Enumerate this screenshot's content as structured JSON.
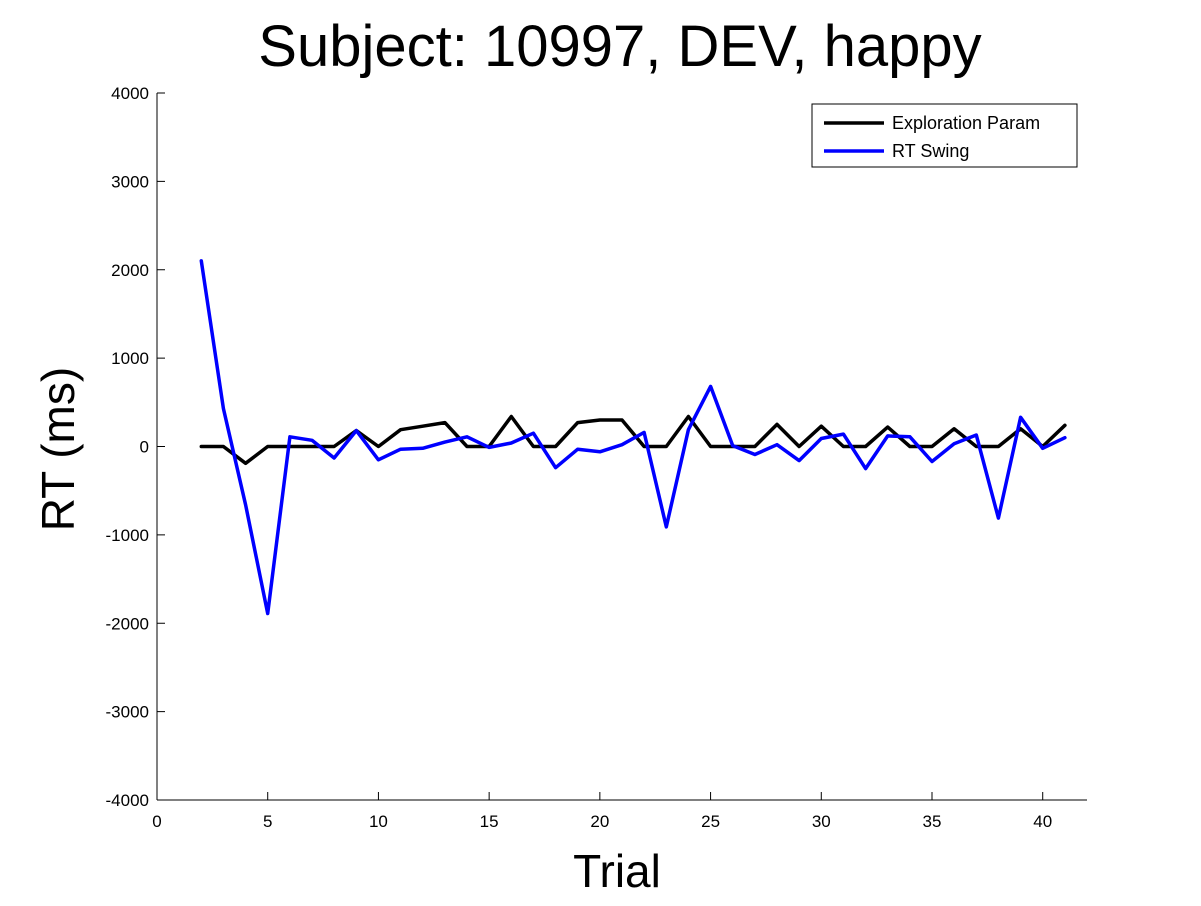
{
  "chart_data": {
    "type": "line",
    "title": "Subject: 10997, DEV, happy",
    "xlabel": "Trial",
    "ylabel": "RT (ms)",
    "xlim": [
      0,
      42
    ],
    "ylim": [
      -4000,
      4000
    ],
    "xticks": [
      0,
      5,
      10,
      15,
      20,
      25,
      30,
      35,
      40
    ],
    "yticks": [
      -4000,
      -3000,
      -2000,
      -1000,
      0,
      1000,
      2000,
      3000,
      4000
    ],
    "grid": false,
    "legend_position": "top-right",
    "x": [
      2,
      3,
      4,
      5,
      6,
      7,
      8,
      9,
      10,
      11,
      12,
      13,
      14,
      15,
      16,
      17,
      18,
      19,
      20,
      21,
      22,
      23,
      24,
      25,
      26,
      27,
      28,
      29,
      30,
      31,
      32,
      33,
      34,
      35,
      36,
      37,
      38,
      39,
      40,
      41
    ],
    "series": [
      {
        "name": "Exploration Param",
        "color": "#000000",
        "values": [
          0,
          0,
          -190,
          0,
          0,
          0,
          0,
          180,
          0,
          190,
          230,
          270,
          0,
          0,
          340,
          0,
          0,
          270,
          300,
          300,
          0,
          0,
          340,
          0,
          0,
          0,
          250,
          0,
          230,
          0,
          0,
          220,
          0,
          0,
          200,
          0,
          0,
          200,
          0,
          240
        ]
      },
      {
        "name": "RT Swing",
        "color": "#0000ff",
        "values": [
          2100,
          430,
          -660,
          -1890,
          110,
          70,
          -130,
          180,
          -150,
          -30,
          -20,
          50,
          110,
          -10,
          40,
          150,
          -240,
          -30,
          -60,
          20,
          160,
          -910,
          190,
          680,
          10,
          -90,
          20,
          -160,
          90,
          140,
          -250,
          120,
          110,
          -170,
          30,
          130,
          -810,
          330,
          -20,
          100
        ]
      }
    ]
  }
}
